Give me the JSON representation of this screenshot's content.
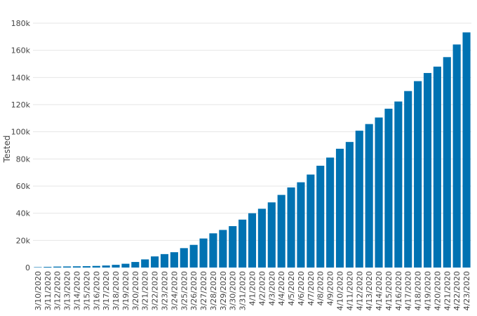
{
  "chart_data": {
    "type": "bar",
    "ylabel": "Tested",
    "xlabel": "",
    "ylim": [
      0,
      180000
    ],
    "y_ticks": [
      0,
      20000,
      40000,
      60000,
      80000,
      100000,
      120000,
      140000,
      160000,
      180000
    ],
    "y_tick_labels": [
      "0",
      "20k",
      "40k",
      "60k",
      "80k",
      "100k",
      "120k",
      "140k",
      "160k",
      "180k"
    ],
    "grid": true,
    "bar_color": "#0072b2",
    "categories": [
      "3/10/2020",
      "3/11/2020",
      "3/12/2020",
      "3/13/2020",
      "3/14/2020",
      "3/15/2020",
      "3/16/2020",
      "3/17/2020",
      "3/18/2020",
      "3/19/2020",
      "3/20/2020",
      "3/21/2020",
      "3/22/2020",
      "3/23/2020",
      "3/24/2020",
      "3/25/2020",
      "3/26/2020",
      "3/27/2020",
      "3/28/2020",
      "3/29/2020",
      "3/30/2020",
      "3/31/2020",
      "4/1/2020",
      "4/2/2020",
      "4/3/2020",
      "4/4/2020",
      "4/5/2020",
      "4/6/2020",
      "4/7/2020",
      "4/8/2020",
      "4/9/2020",
      "4/10/2020",
      "4/11/2020",
      "4/12/2020",
      "4/13/2020",
      "4/14/2020",
      "4/15/2020",
      "4/16/2020",
      "4/17/2020",
      "4/18/2020",
      "4/19/2020",
      "4/20/2020",
      "4/21/2020",
      "4/22/2020",
      "4/23/2020"
    ],
    "values": [
      300,
      500,
      700,
      800,
      900,
      1000,
      1200,
      1500,
      2000,
      2800,
      4100,
      6000,
      8200,
      9900,
      11300,
      14300,
      16700,
      21400,
      25200,
      27700,
      30500,
      35300,
      40000,
      43300,
      48000,
      53500,
      59000,
      62800,
      68500,
      75000,
      81000,
      87500,
      92500,
      100800,
      105700,
      110500,
      117000,
      122300,
      130000,
      137300,
      143300,
      148000,
      155000,
      164300,
      173200
    ]
  }
}
